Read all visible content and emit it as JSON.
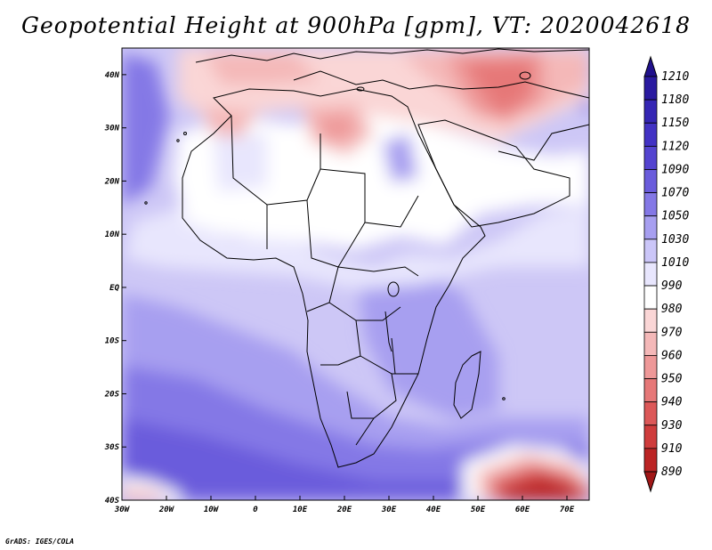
{
  "title": "Geopotential Height at 900hPa [gpm], VT: 2020042618",
  "credit": "GrADS: IGES/COLA",
  "map": {
    "lat_labels": [
      "40N",
      "30N",
      "20N",
      "10N",
      "EQ",
      "10S",
      "20S",
      "30S",
      "40S"
    ],
    "lon_labels": [
      "30W",
      "20W",
      "10W",
      "0",
      "10E",
      "20E",
      "30E",
      "40E",
      "50E",
      "60E",
      "70E"
    ],
    "lat_values": [
      40,
      30,
      20,
      10,
      0,
      -10,
      -20,
      -30,
      -40
    ],
    "lon_values": [
      -30,
      -20,
      -10,
      0,
      10,
      20,
      30,
      40,
      50,
      60,
      70
    ],
    "extent": {
      "lon_min": -30,
      "lon_max": 75,
      "lat_min": -40,
      "lat_max": 45
    }
  },
  "colorbar": {
    "levels": [
      {
        "label": "1210",
        "color": "#20108c"
      },
      {
        "label": "1180",
        "color": "#2a1aa0"
      },
      {
        "label": "1150",
        "color": "#3526b4"
      },
      {
        "label": "1120",
        "color": "#4232c4"
      },
      {
        "label": "1090",
        "color": "#5444d0"
      },
      {
        "label": "1070",
        "color": "#6a5cdc"
      },
      {
        "label": "1050",
        "color": "#8478e6"
      },
      {
        "label": "1030",
        "color": "#a79ff0"
      },
      {
        "label": "1010",
        "color": "#cbc6f8"
      },
      {
        "label": "990",
        "color": "#e8e6fd"
      },
      {
        "label": "980",
        "color": "#ffffff"
      },
      {
        "label": "970",
        "color": "#fad6d6"
      },
      {
        "label": "960",
        "color": "#f4b8b8"
      },
      {
        "label": "950",
        "color": "#ee9898"
      },
      {
        "label": "940",
        "color": "#e67878"
      },
      {
        "label": "930",
        "color": "#dc5858"
      },
      {
        "label": "910",
        "color": "#cf3c3c"
      },
      {
        "label": "890",
        "color": "#bb2424"
      }
    ],
    "bottom_color": "#a01616"
  }
}
